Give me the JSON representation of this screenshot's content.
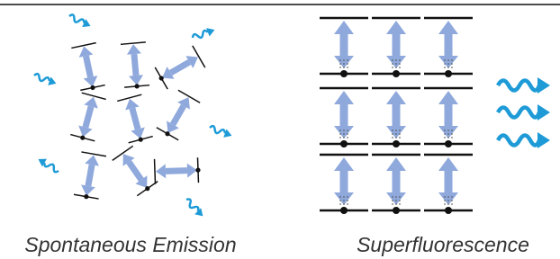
{
  "panels": [
    {
      "label": "Spontaneous Emission"
    },
    {
      "label": "Superfluorescence"
    }
  ]
}
